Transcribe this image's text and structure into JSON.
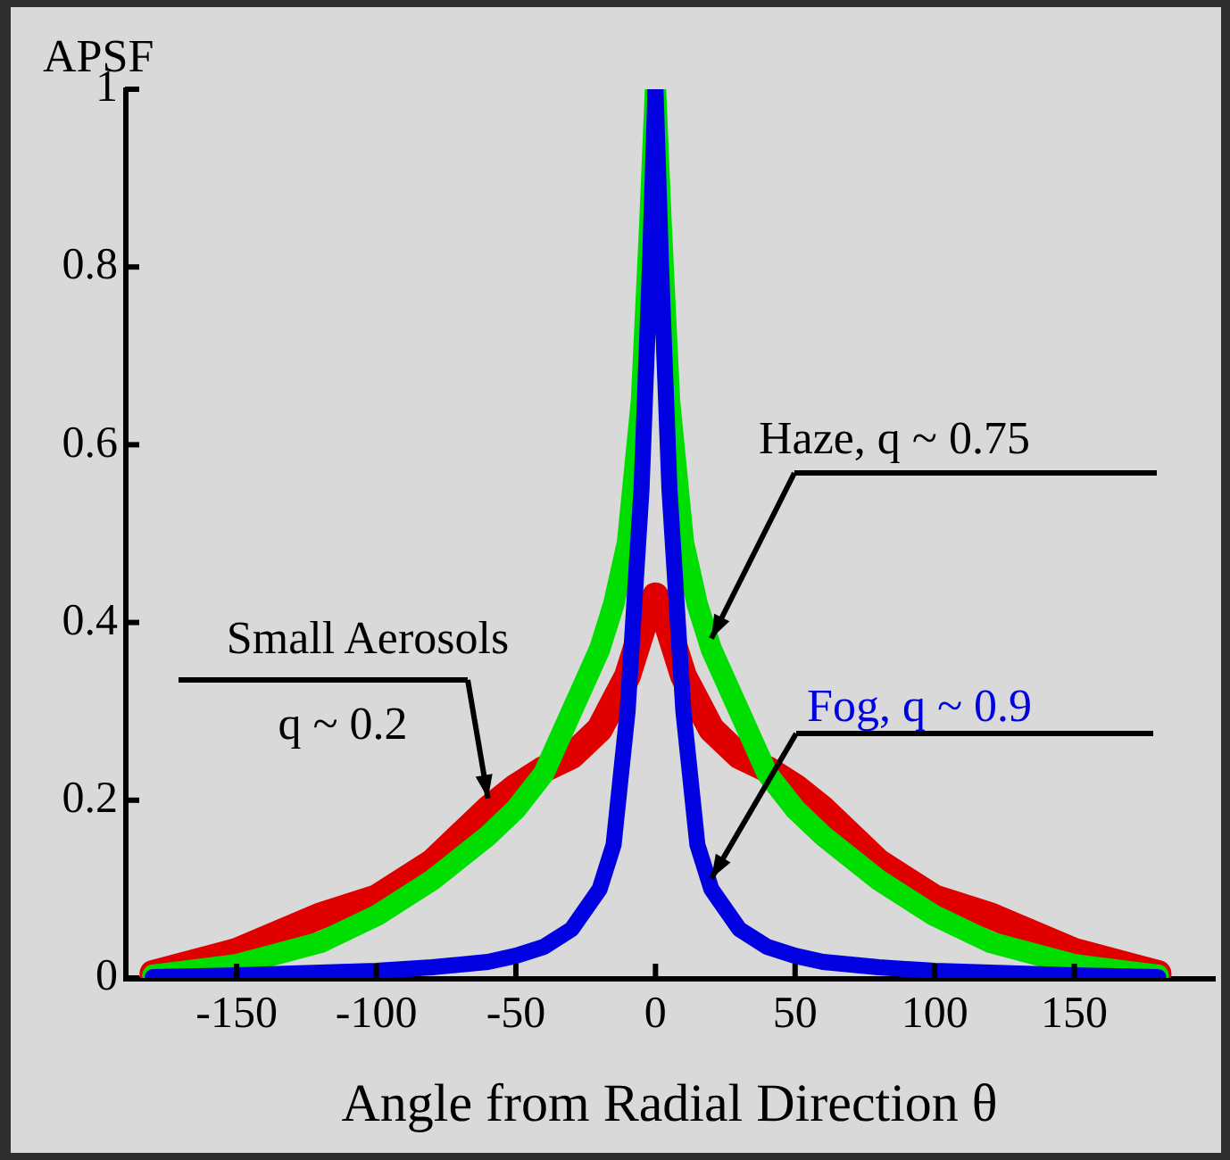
{
  "chart_data": {
    "type": "line",
    "ylabel": "APSF",
    "xlabel": "Angle from Radial Direction θ",
    "xlim": [
      -190,
      200
    ],
    "xticks": [
      -150,
      -100,
      -50,
      0,
      50,
      100,
      150
    ],
    "ylim": [
      0,
      1
    ],
    "yticks": [
      0,
      0.2,
      0.4,
      0.6,
      0.8,
      1
    ],
    "grid": false,
    "legend": false,
    "marker": "none",
    "line_style": "solid",
    "series": [
      {
        "name": "Small Aerosols q ~ 0.2",
        "color": "#e00000",
        "x": [
          -180,
          -150,
          -120,
          -100,
          -80,
          -60,
          -50,
          -40,
          -30,
          -20,
          -15,
          -10,
          -5,
          -2,
          0,
          2,
          5,
          10,
          15,
          20,
          30,
          40,
          50,
          60,
          80,
          100,
          120,
          150,
          180
        ],
        "values": [
          0.005,
          0.03,
          0.07,
          0.09,
          0.13,
          0.19,
          0.215,
          0.235,
          0.25,
          0.28,
          0.31,
          0.34,
          0.39,
          0.42,
          0.43,
          0.42,
          0.39,
          0.34,
          0.31,
          0.28,
          0.25,
          0.235,
          0.215,
          0.19,
          0.13,
          0.09,
          0.07,
          0.03,
          0.005
        ]
      },
      {
        "name": "Haze, q ~ 0.75",
        "color": "#00dd00",
        "x": [
          -180,
          -150,
          -120,
          -100,
          -80,
          -60,
          -50,
          -40,
          -30,
          -20,
          -15,
          -10,
          -5,
          -2,
          0,
          2,
          5,
          10,
          15,
          20,
          30,
          40,
          50,
          60,
          80,
          100,
          120,
          150,
          180
        ],
        "values": [
          0.003,
          0.015,
          0.04,
          0.07,
          0.11,
          0.16,
          0.19,
          0.23,
          0.3,
          0.37,
          0.42,
          0.49,
          0.65,
          0.85,
          1,
          0.85,
          0.65,
          0.49,
          0.42,
          0.37,
          0.3,
          0.23,
          0.19,
          0.16,
          0.11,
          0.07,
          0.04,
          0.015,
          0.003
        ]
      },
      {
        "name": "Fog, q ~ 0.9",
        "color": "#0000e0",
        "x": [
          -180,
          -150,
          -120,
          -100,
          -80,
          -60,
          -50,
          -40,
          -30,
          -20,
          -15,
          -10,
          -5,
          -2,
          0,
          2,
          5,
          10,
          15,
          20,
          30,
          40,
          50,
          60,
          80,
          100,
          120,
          150,
          180
        ],
        "values": [
          0.001,
          0.003,
          0.006,
          0.008,
          0.012,
          0.018,
          0.025,
          0.035,
          0.055,
          0.1,
          0.15,
          0.3,
          0.55,
          0.8,
          1,
          0.8,
          0.55,
          0.3,
          0.15,
          0.1,
          0.055,
          0.035,
          0.025,
          0.018,
          0.012,
          0.008,
          0.006,
          0.003,
          0.001
        ]
      }
    ]
  }
}
